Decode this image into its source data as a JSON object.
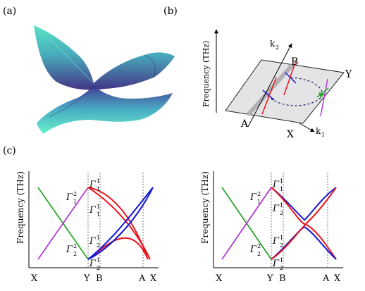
{
  "panels": {
    "a": {
      "label": "(a)"
    },
    "b": {
      "label": "(b)",
      "axis_label": "Frequency (THz)",
      "k2_label": "k",
      "k2_sub": "2",
      "k1_label": "k",
      "k1_sub": "1",
      "point_a": "A",
      "point_b": "B",
      "point_x": "X",
      "point_y": "Y"
    },
    "c": {
      "label": "(c)"
    }
  },
  "charts": [
    {
      "ylabel": "Frequency (THz)",
      "ticks": [
        "X",
        "Y",
        "B",
        "A",
        "X"
      ],
      "annotations": [
        {
          "base": "Γ",
          "sub": "1",
          "sup": "2"
        },
        {
          "base": "Γ",
          "sub": "1",
          "sup": "1"
        },
        {
          "base": "Γ",
          "sub": "1",
          "sup": "1"
        },
        {
          "base": "Γ",
          "sub": "2",
          "sup": "1"
        },
        {
          "base": "Γ",
          "sub": "2",
          "sup": "2"
        },
        {
          "base": "Γ",
          "sub": "2",
          "sup": "1"
        }
      ]
    },
    {
      "ylabel": "Frequency (THz)",
      "ticks": [
        "X",
        "Y",
        "B",
        "A",
        "X"
      ],
      "annotations": [
        {
          "base": "Γ",
          "sub": "1",
          "sup": "2"
        },
        {
          "base": "Γ",
          "sub": "1",
          "sup": "1"
        },
        {
          "base": "Γ",
          "sub": "2",
          "sup": "1"
        },
        {
          "base": "Γ",
          "sub": "2",
          "sup": "1"
        },
        {
          "base": "Γ",
          "sub": "2",
          "sup": "2"
        },
        {
          "base": "Γ",
          "sub": "2",
          "sup": "1"
        }
      ]
    }
  ],
  "colors": {
    "red": "#e8141c",
    "blue": "#1616d8",
    "green": "#2aa82a",
    "magenta": "#b23ad0"
  }
}
